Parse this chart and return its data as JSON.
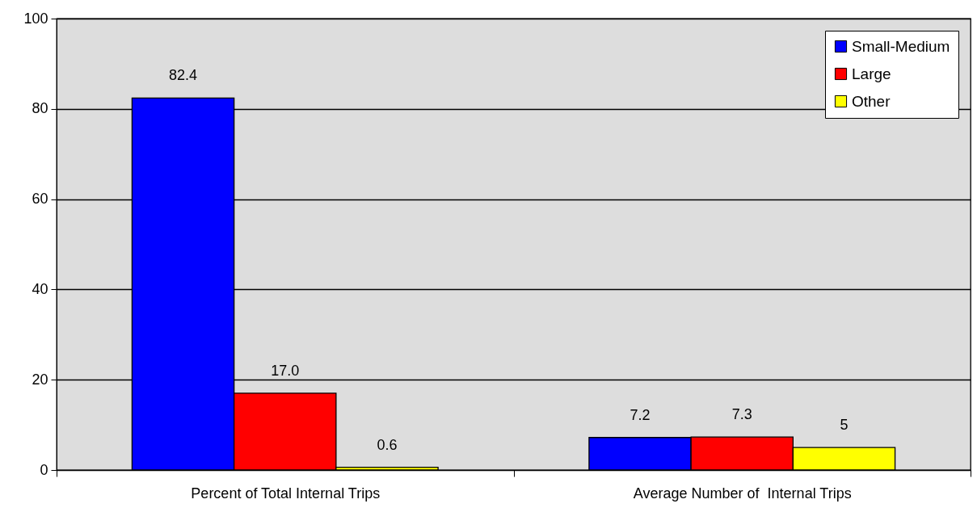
{
  "chart_data": {
    "type": "bar",
    "categories": [
      "Percent of Total Internal Trips",
      "Average Number of  Internal Trips"
    ],
    "series": [
      {
        "name": "Small-Medium",
        "color": "#0000ff",
        "values": [
          82.4,
          7.2
        ],
        "value_labels": [
          "82.4",
          "7.2"
        ]
      },
      {
        "name": "Large",
        "color": "#ff0000",
        "values": [
          17.0,
          7.3
        ],
        "value_labels": [
          "17.0",
          "7.3"
        ]
      },
      {
        "name": "Other",
        "color": "#ffff00",
        "values": [
          0.6,
          5
        ],
        "value_labels": [
          "0.6",
          "5"
        ]
      }
    ],
    "ylim": [
      0,
      100
    ],
    "yticks": [
      0,
      20,
      40,
      60,
      80,
      100
    ],
    "grid": true,
    "legend": "top right"
  }
}
